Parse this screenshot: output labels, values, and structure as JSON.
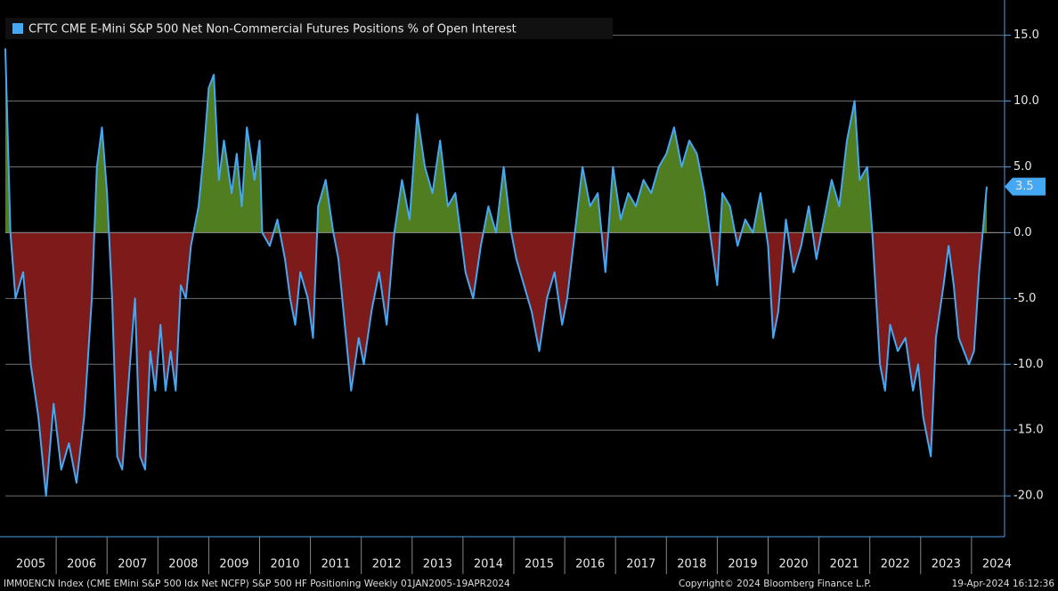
{
  "chart_data": {
    "type": "line",
    "series": [
      {
        "name": "CFTC CME E-Mini S&P 500 Net Non-Commercial Futures Positions % of Open Interest",
        "color": "#45a8f5",
        "x": [
          2005.0,
          2005.1,
          2005.2,
          2005.35,
          2005.5,
          2005.65,
          2005.8,
          2005.95,
          2006.1,
          2006.25,
          2006.4,
          2006.55,
          2006.7,
          2006.8,
          2006.9,
          2007.0,
          2007.1,
          2007.2,
          2007.3,
          2007.45,
          2007.55,
          2007.65,
          2007.75,
          2007.85,
          2007.95,
          2008.05,
          2008.15,
          2008.25,
          2008.35,
          2008.45,
          2008.55,
          2008.65,
          2008.8,
          2008.9,
          2009.0,
          2009.1,
          2009.2,
          2009.3,
          2009.45,
          2009.55,
          2009.65,
          2009.75,
          2009.9,
          2010.0,
          2010.05,
          2010.2,
          2010.35,
          2010.5,
          2010.6,
          2010.7,
          2010.8,
          2010.95,
          2011.05,
          2011.15,
          2011.3,
          2011.45,
          2011.55,
          2011.7,
          2011.8,
          2011.95,
          2012.05,
          2012.2,
          2012.35,
          2012.5,
          2012.65,
          2012.8,
          2012.95,
          2013.1,
          2013.25,
          2013.4,
          2013.55,
          2013.7,
          2013.85,
          2013.95,
          2014.05,
          2014.2,
          2014.35,
          2014.5,
          2014.65,
          2014.8,
          2014.95,
          2015.05,
          2015.2,
          2015.35,
          2015.5,
          2015.65,
          2015.8,
          2015.95,
          2016.05,
          2016.2,
          2016.35,
          2016.5,
          2016.65,
          2016.8,
          2016.95,
          2017.1,
          2017.25,
          2017.4,
          2017.55,
          2017.7,
          2017.85,
          2018.0,
          2018.15,
          2018.3,
          2018.45,
          2018.6,
          2018.75,
          2019.0,
          2019.1,
          2019.25,
          2019.4,
          2019.55,
          2019.7,
          2019.85,
          2020.0,
          2020.1,
          2020.2,
          2020.35,
          2020.5,
          2020.65,
          2020.8,
          2020.95,
          2021.1,
          2021.25,
          2021.4,
          2021.55,
          2021.7,
          2021.8,
          2021.95,
          2022.05,
          2022.2,
          2022.3,
          2022.4,
          2022.55,
          2022.7,
          2022.85,
          2022.95,
          2023.05,
          2023.2,
          2023.3,
          2023.45,
          2023.55,
          2023.65,
          2023.75,
          2023.85,
          2023.95,
          2024.05,
          2024.15,
          2024.3
        ],
        "values": [
          14,
          0,
          -5,
          -3,
          -10,
          -14,
          -20,
          -13,
          -18,
          -16,
          -19,
          -14,
          -5,
          5,
          8,
          3,
          -5,
          -17,
          -18,
          -10,
          -5,
          -17,
          -18,
          -9,
          -12,
          -7,
          -12,
          -9,
          -12,
          -4,
          -5,
          -1,
          2,
          6,
          11,
          12,
          4,
          7,
          3,
          6,
          2,
          8,
          4,
          7,
          0,
          -1,
          1,
          -2,
          -5,
          -7,
          -3,
          -5,
          -8,
          2,
          4,
          0,
          -2,
          -8,
          -12,
          -8,
          -10,
          -6,
          -3,
          -7,
          0,
          4,
          1,
          9,
          5,
          3,
          7,
          2,
          3,
          0,
          -3,
          -5,
          -1,
          2,
          0,
          5,
          0,
          -2,
          -4,
          -6,
          -9,
          -5,
          -3,
          -7,
          -5,
          0,
          5,
          2,
          3,
          -3,
          5,
          1,
          3,
          2,
          4,
          3,
          5,
          6,
          8,
          5,
          7,
          6,
          3,
          -4,
          3,
          2,
          -1,
          1,
          0,
          3,
          -1,
          -8,
          -6,
          1,
          -3,
          -1,
          2,
          -2,
          1,
          4,
          2,
          7,
          10,
          4,
          5,
          0,
          -10,
          -12,
          -7,
          -9,
          -8,
          -12,
          -10,
          -14,
          -17,
          -8,
          -4,
          -1,
          -4,
          -8,
          -9,
          -10,
          -9,
          -3,
          3.5
        ]
      }
    ],
    "xlim": [
      2005,
      2024.65
    ],
    "xticks": [
      2005,
      2006,
      2007,
      2008,
      2009,
      2010,
      2011,
      2012,
      2013,
      2014,
      2015,
      2016,
      2017,
      2018,
      2019,
      2020,
      2021,
      2022,
      2023,
      2024
    ],
    "ylim": [
      -23.1,
      17
    ],
    "yticks": [
      {
        "value": 15,
        "label": "15.0"
      },
      {
        "value": 10,
        "label": "10.0"
      },
      {
        "value": 5,
        "label": "5.0"
      },
      {
        "value": 0,
        "label": "0.0"
      },
      {
        "value": -5,
        "label": "-5.0"
      },
      {
        "value": -10,
        "label": "-10.0"
      },
      {
        "value": -15,
        "label": "-15.0"
      },
      {
        "value": -20,
        "label": "-20.0"
      }
    ],
    "grid": true,
    "positive_color": "#4f7d1f",
    "negative_color": "#7d1b1b",
    "footer": {
      "left": "IMM0ENCN Index (CME EMini S&P 500 Idx Net NCFP) S&P 500 HF Positioning  Weekly 01JAN2005-19APR2024",
      "middle": "Copyright© 2024 Bloomberg Finance L.P.",
      "right": "19-Apr-2024 16:12:36"
    }
  }
}
